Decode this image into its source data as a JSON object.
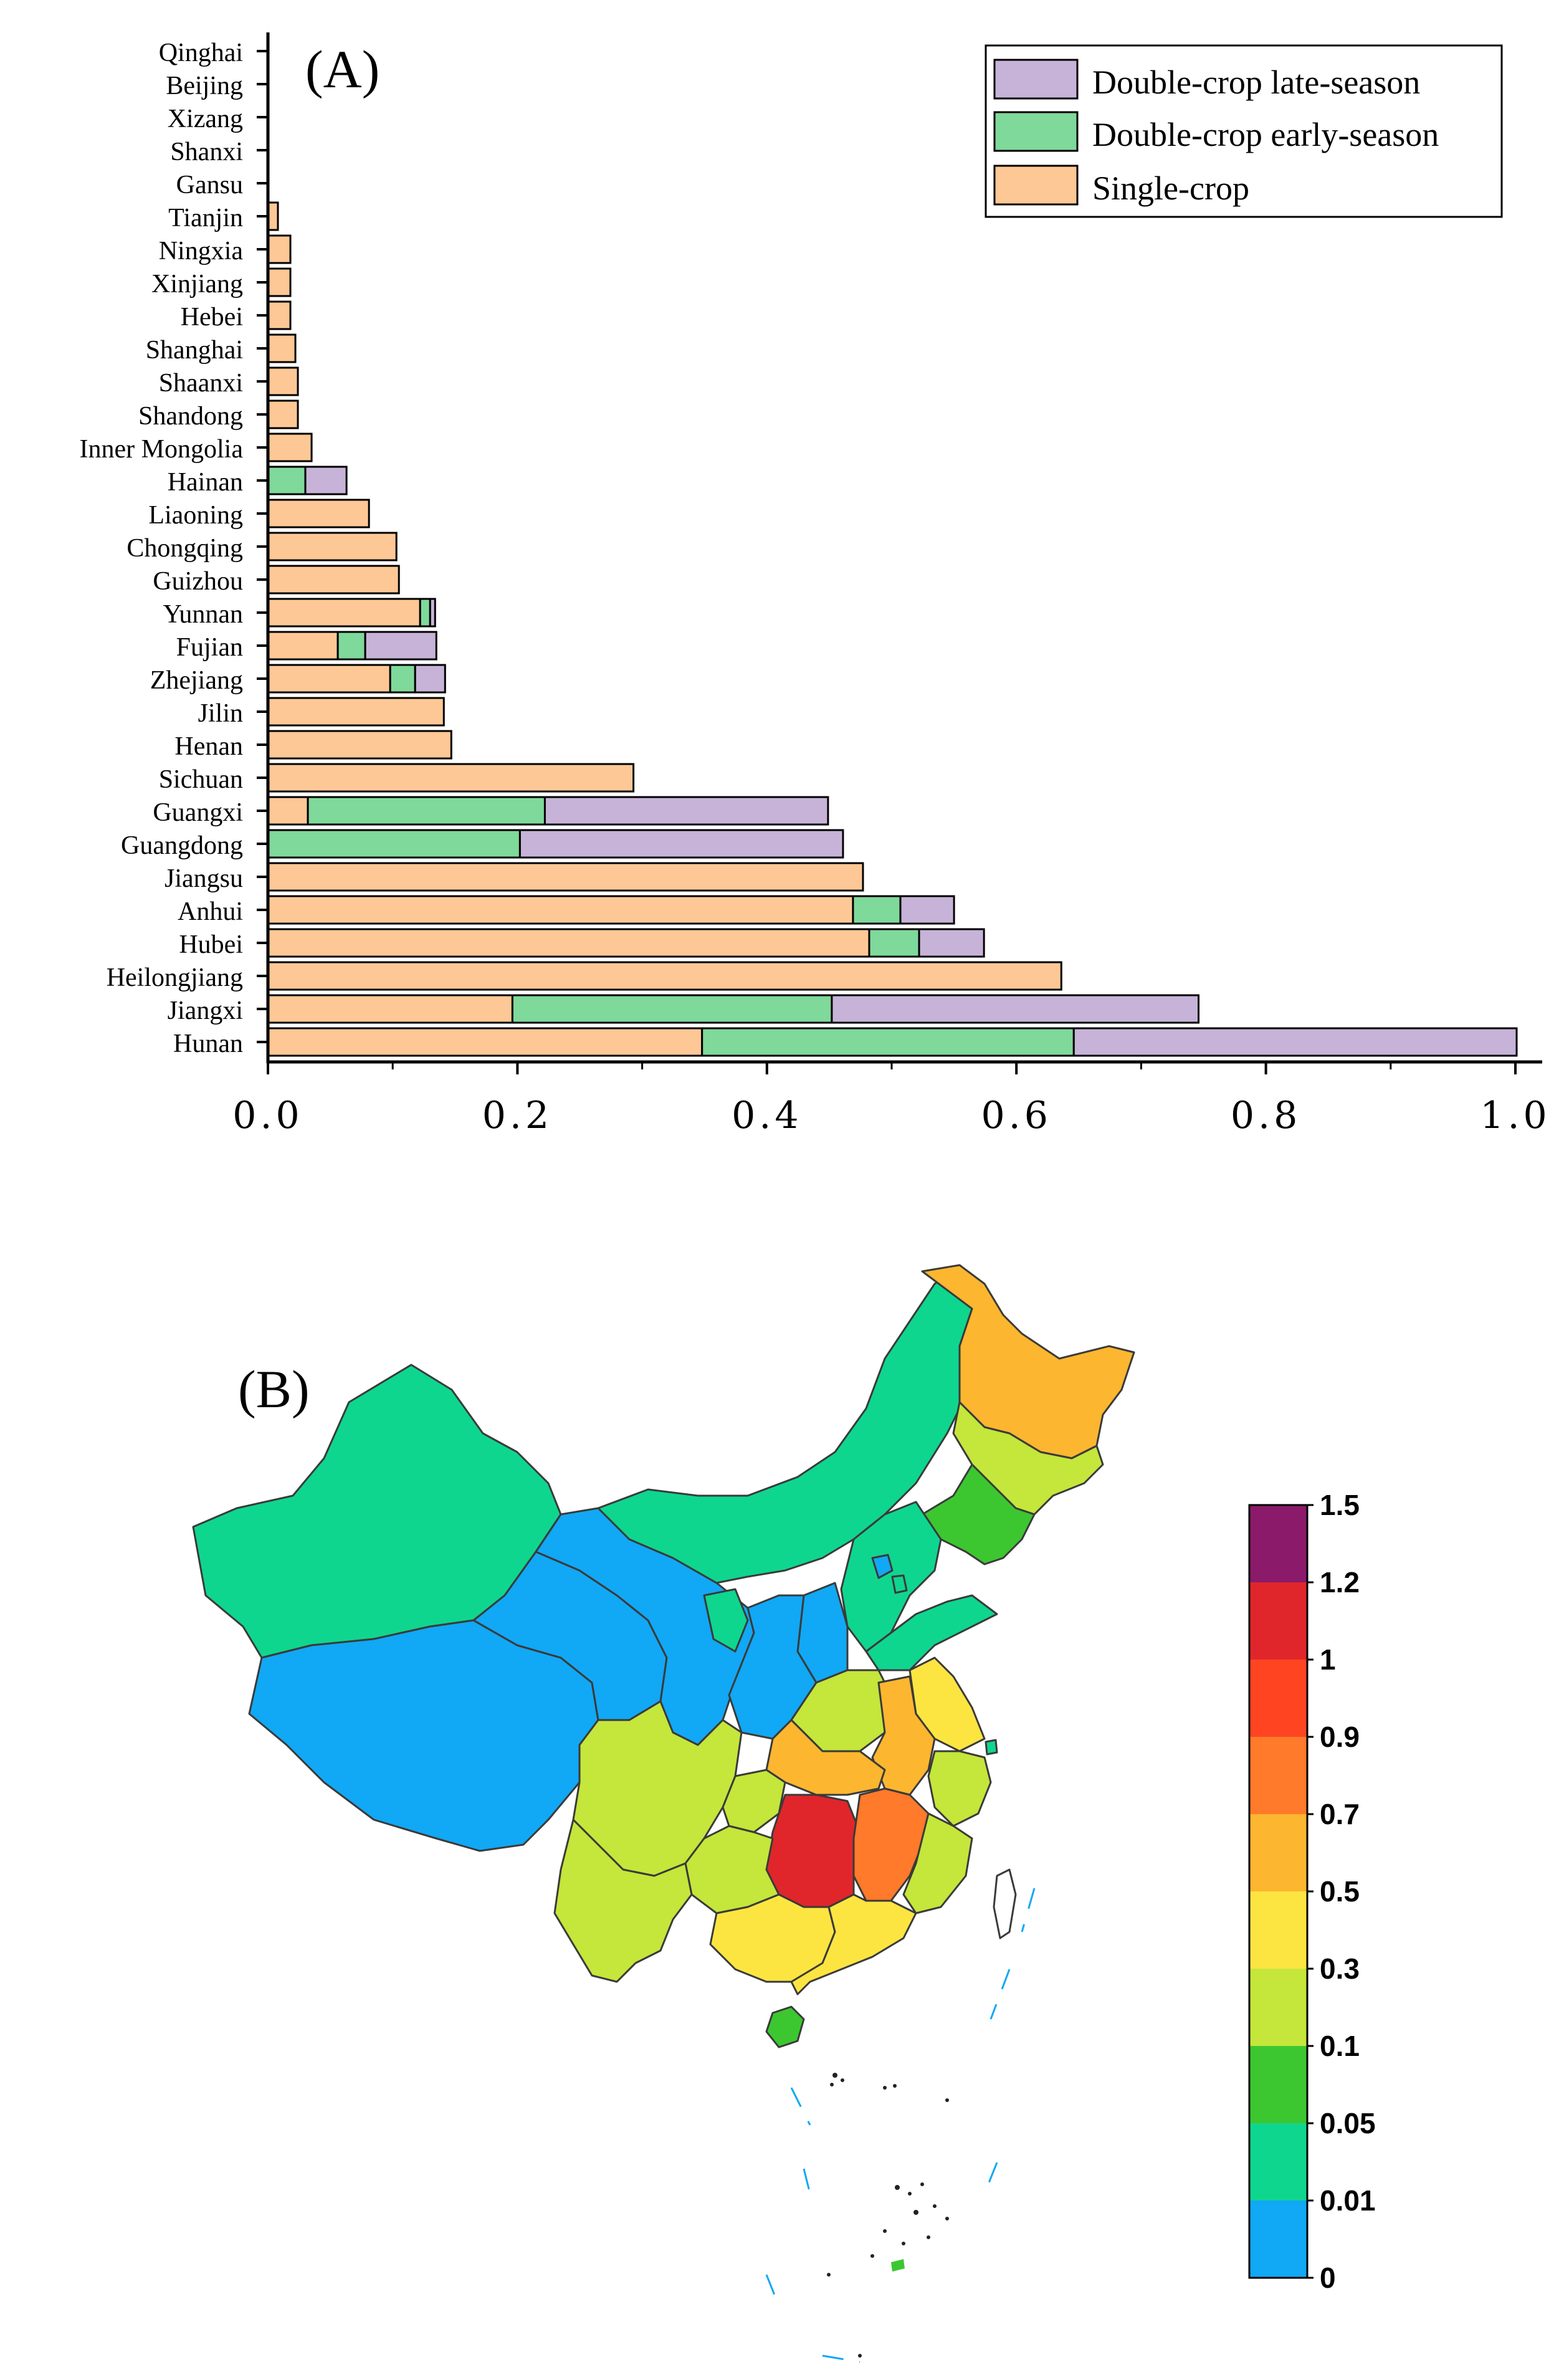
{
  "colors": {
    "single": "#FDC895",
    "early": "#7FD99A",
    "late": "#C7B3D8",
    "axis": "#000000"
  },
  "chart_data": [
    {
      "type": "bar",
      "orientation": "horizontal",
      "stacked": true,
      "panel_label": "(A)",
      "categories": [
        "Qinghai",
        "Beijing",
        "Xizang",
        "Shanxi",
        "Gansu",
        "Tianjin",
        "Ningxia",
        "Xinjiang",
        "Hebei",
        "Shanghai",
        "Shaanxi",
        "Shandong",
        "Inner Mongolia",
        "Hainan",
        "Liaoning",
        "Chongqing",
        "Guizhou",
        "Yunnan",
        "Fujian",
        "Zhejiang",
        "Jilin",
        "Henan",
        "Sichuan",
        "Guangxi",
        "Guangdong",
        "Jiangsu",
        "Anhui",
        "Hubei",
        "Heilongjiang",
        "Jiangxi",
        "Hunan"
      ],
      "series": [
        {
          "name": "Single-crop",
          "color_key": "single",
          "values": [
            0,
            0,
            0,
            0,
            0,
            0.008,
            0.018,
            0.018,
            0.018,
            0.022,
            0.024,
            0.024,
            0.035,
            0,
            0.081,
            0.103,
            0.105,
            0.122,
            0.056,
            0.098,
            0.141,
            0.147,
            0.293,
            0.032,
            0,
            0.477,
            0.469,
            0.482,
            0.636,
            0.196,
            0.348
          ]
        },
        {
          "name": "Double-crop early-season",
          "color_key": "early",
          "values": [
            0,
            0,
            0,
            0,
            0,
            0,
            0,
            0,
            0,
            0,
            0,
            0,
            0,
            0.03,
            0,
            0,
            0,
            0.008,
            0.022,
            0.02,
            0,
            0,
            0,
            0.19,
            0.202,
            0,
            0.038,
            0.04,
            0,
            0.256,
            0.298
          ]
        },
        {
          "name": "Double-crop late-season",
          "color_key": "late",
          "values": [
            0,
            0,
            0,
            0,
            0,
            0,
            0,
            0,
            0,
            0,
            0,
            0,
            0,
            0.033,
            0,
            0,
            0,
            0.004,
            0.057,
            0.024,
            0,
            0,
            0,
            0.227,
            0.259,
            0,
            0.043,
            0.052,
            0,
            0.294,
            0.355
          ]
        }
      ],
      "legend": [
        "Double-crop late-season",
        "Double-crop early-season",
        "Single-crop"
      ],
      "legend_position": "top-right",
      "x_ticks": [
        "0.0",
        "0.2",
        "0.4",
        "0.6",
        "0.8",
        "1.0"
      ],
      "xlim": [
        0,
        1.02
      ],
      "xlabel": "",
      "ylabel": ""
    },
    {
      "type": "heatmap",
      "subtype": "choropleth-map",
      "panel_label": "(B)",
      "legend_bins": [
        {
          "label": "1.5",
          "color": "#8B1A6B"
        },
        {
          "label": "1.2",
          "color": "#E0262B"
        },
        {
          "label": "1",
          "color": "#FF4422"
        },
        {
          "label": "0.9",
          "color": "#FF7A2A"
        },
        {
          "label": "0.7",
          "color": "#FDB62F"
        },
        {
          "label": "0.5",
          "color": "#FDE541"
        },
        {
          "label": "0.3",
          "color": "#C5E63A"
        },
        {
          "label": "0.1",
          "color": "#3CC730"
        },
        {
          "label": "0.05",
          "color": "#0FD68F"
        },
        {
          "label": "0.01",
          "color": "#11A8F5"
        },
        {
          "label": "0",
          "color": "#ffffff"
        }
      ],
      "regions": [
        {
          "name": "Xinjiang",
          "bin": "0.05"
        },
        {
          "name": "Xizang",
          "bin": "0"
        },
        {
          "name": "Qinghai",
          "bin": "0"
        },
        {
          "name": "Gansu",
          "bin": "0"
        },
        {
          "name": "Ningxia",
          "bin": "0.05"
        },
        {
          "name": "Inner Mongolia",
          "bin": "0.05"
        },
        {
          "name": "Heilongjiang",
          "bin": "0.7"
        },
        {
          "name": "Jilin",
          "bin": "0.3"
        },
        {
          "name": "Liaoning",
          "bin": "0.1"
        },
        {
          "name": "Hebei",
          "bin": "0.05"
        },
        {
          "name": "Beijing",
          "bin": "0"
        },
        {
          "name": "Tianjin",
          "bin": "0.05"
        },
        {
          "name": "Shanxi",
          "bin": "0"
        },
        {
          "name": "Shaanxi",
          "bin": "0"
        },
        {
          "name": "Shandong",
          "bin": "0.05"
        },
        {
          "name": "Henan",
          "bin": "0.3"
        },
        {
          "name": "Jiangsu",
          "bin": "0.5"
        },
        {
          "name": "Anhui",
          "bin": "0.7"
        },
        {
          "name": "Shanghai",
          "bin": "0.05"
        },
        {
          "name": "Hubei",
          "bin": "0.7"
        },
        {
          "name": "Sichuan",
          "bin": "0.3"
        },
        {
          "name": "Chongqing",
          "bin": "0.3"
        },
        {
          "name": "Zhejiang",
          "bin": "0.3"
        },
        {
          "name": "Hunan",
          "bin": "1.2"
        },
        {
          "name": "Jiangxi",
          "bin": "0.9"
        },
        {
          "name": "Guizhou",
          "bin": "0.3"
        },
        {
          "name": "Yunnan",
          "bin": "0.3"
        },
        {
          "name": "Fujian",
          "bin": "0.3"
        },
        {
          "name": "Guangxi",
          "bin": "0.5"
        },
        {
          "name": "Guangdong",
          "bin": "0.5"
        },
        {
          "name": "Hainan",
          "bin": "0.1"
        },
        {
          "name": "Taiwan",
          "bin": "0"
        }
      ]
    }
  ]
}
